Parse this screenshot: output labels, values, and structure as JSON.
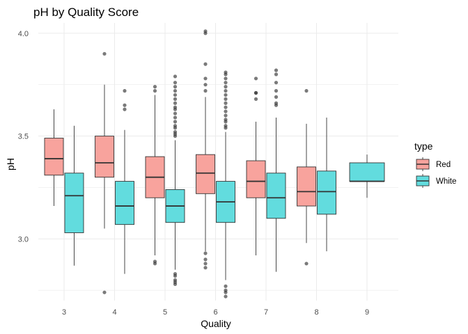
{
  "chart_data": {
    "type": "box",
    "title": "pH by Quality Score",
    "xlabel": "Quality",
    "ylabel": "pH",
    "categories": [
      "3",
      "4",
      "5",
      "6",
      "7",
      "8",
      "9"
    ],
    "yticks": [
      "3.0",
      "3.5",
      "4.0"
    ],
    "ylim": [
      2.7,
      4.05
    ],
    "grid": true,
    "legend": {
      "title": "type",
      "position": "right"
    },
    "series": [
      {
        "name": "Red",
        "color": "#F8A39D",
        "boxes": [
          {
            "category": "3",
            "whisker_low": 3.16,
            "q1": 3.31,
            "median": 3.39,
            "q3": 3.49,
            "whisker_high": 3.63,
            "outliers": []
          },
          {
            "category": "4",
            "whisker_low": 3.05,
            "q1": 3.3,
            "median": 3.37,
            "q3": 3.5,
            "whisker_high": 3.75,
            "outliers": [
              3.9,
              2.74
            ]
          },
          {
            "category": "5",
            "whisker_low": 2.92,
            "q1": 3.2,
            "median": 3.3,
            "q3": 3.4,
            "whisker_high": 3.7,
            "outliers": [
              3.74,
              3.72,
              2.89,
              2.88
            ]
          },
          {
            "category": "6",
            "whisker_low": 2.94,
            "q1": 3.22,
            "median": 3.32,
            "q3": 3.41,
            "whisker_high": 3.69,
            "outliers": [
              4.01,
              4.0,
              3.85,
              3.78,
              3.75,
              3.72,
              2.93,
              2.9,
              2.88,
              2.86
            ]
          },
          {
            "category": "7",
            "whisker_low": 2.92,
            "q1": 3.2,
            "median": 3.28,
            "q3": 3.38,
            "whisker_high": 3.57,
            "outliers": [
              3.78,
              3.71,
              3.71,
              3.68
            ]
          },
          {
            "category": "8",
            "whisker_low": 2.98,
            "q1": 3.16,
            "median": 3.23,
            "q3": 3.35,
            "whisker_high": 3.56,
            "outliers": [
              3.72,
              2.88
            ]
          }
        ]
      },
      {
        "name": "White",
        "color": "#62DCDE",
        "boxes": [
          {
            "category": "3",
            "whisker_low": 2.87,
            "q1": 3.03,
            "median": 3.21,
            "q3": 3.32,
            "whisker_high": 3.55,
            "outliers": []
          },
          {
            "category": "4",
            "whisker_low": 2.83,
            "q1": 3.07,
            "median": 3.16,
            "q3": 3.28,
            "whisker_high": 3.53,
            "outliers": [
              3.72,
              3.65,
              3.63
            ]
          },
          {
            "category": "5",
            "whisker_low": 2.85,
            "q1": 3.08,
            "median": 3.16,
            "q3": 3.24,
            "whisker_high": 3.48,
            "outliers": [
              3.79,
              3.76,
              3.74,
              3.72,
              3.7,
              3.68,
              3.66,
              3.64,
              3.63,
              3.61,
              3.59,
              3.57,
              3.55,
              3.54,
              3.52,
              3.51,
              3.5,
              2.83,
              2.82,
              2.8,
              2.79,
              2.78
            ]
          },
          {
            "category": "6",
            "whisker_low": 2.8,
            "q1": 3.08,
            "median": 3.18,
            "q3": 3.28,
            "whisker_high": 3.52,
            "outliers": [
              3.81,
              3.8,
              3.78,
              3.76,
              3.74,
              3.72,
              3.7,
              3.68,
              3.66,
              3.64,
              3.62,
              3.6,
              3.58,
              3.57,
              3.55,
              3.54,
              2.77,
              2.75,
              2.74,
              2.72
            ]
          },
          {
            "category": "7",
            "whisker_low": 2.84,
            "q1": 3.1,
            "median": 3.2,
            "q3": 3.32,
            "whisker_high": 3.59,
            "outliers": [
              3.82,
              3.8,
              3.76,
              3.72,
              3.69,
              3.66,
              3.65
            ]
          },
          {
            "category": "8",
            "whisker_low": 2.94,
            "q1": 3.12,
            "median": 3.23,
            "q3": 3.33,
            "whisker_high": 3.59,
            "outliers": []
          },
          {
            "category": "9",
            "whisker_low": 3.2,
            "q1": 3.28,
            "median": 3.28,
            "q3": 3.37,
            "whisker_high": 3.41,
            "outliers": []
          }
        ]
      }
    ]
  }
}
